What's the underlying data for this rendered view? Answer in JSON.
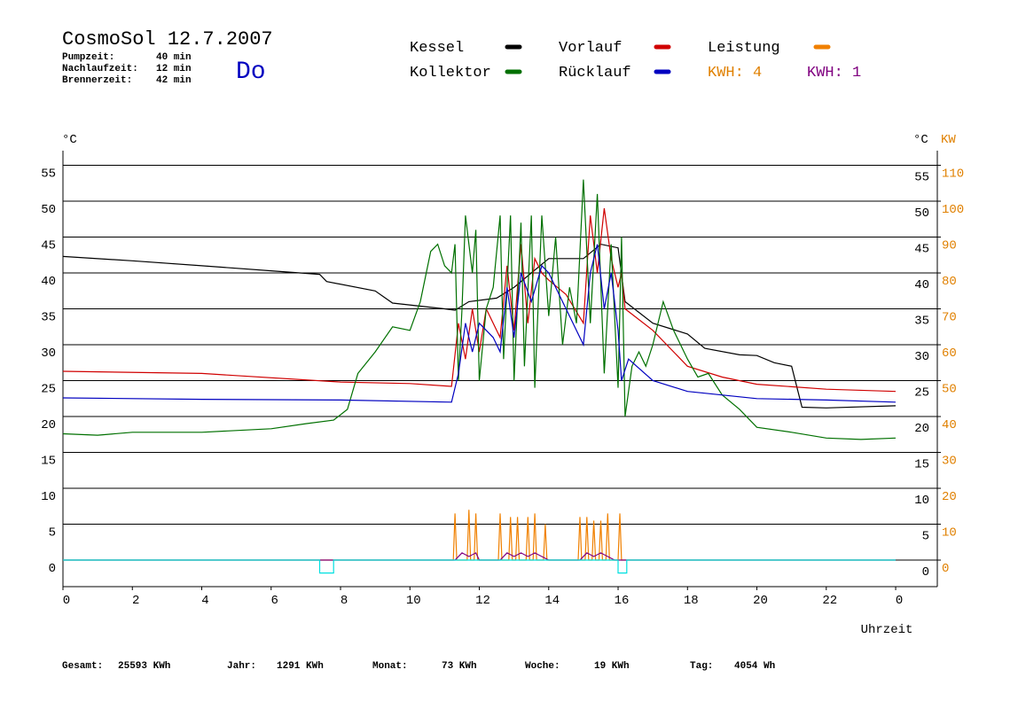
{
  "header": {
    "title": "CosmoSol 12.7.2007",
    "day": "Do",
    "info": [
      {
        "label": "Pumpzeit:",
        "value": "40 min"
      },
      {
        "label": "Nachlaufzeit:",
        "value": "12 min"
      },
      {
        "label": "Brennerzeit:",
        "value": "42 min"
      }
    ],
    "kwh": [
      {
        "text": "KWH: 4",
        "color": "#e08000"
      },
      {
        "text": "KWH: 1",
        "color": "#800080"
      }
    ]
  },
  "footer": [
    {
      "label": "Gesamt:",
      "value": "25593 KWh"
    },
    {
      "label": "Jahr:",
      "value": "1291 KWh"
    },
    {
      "label": "Monat:",
      "value": "73 KWh"
    },
    {
      "label": "Woche:",
      "value": "19 KWh"
    },
    {
      "label": "Tag:",
      "value": "4054 Wh"
    }
  ],
  "chart_data": {
    "type": "line",
    "ylabel": "°C",
    "y2label_left": "°C",
    "y2label": "KW",
    "xlabel": "Uhrzeit",
    "xlim": [
      0,
      25.2
    ],
    "xticks": [
      0,
      2,
      4,
      6,
      8,
      10,
      12,
      14,
      16,
      18,
      20,
      22,
      {
        "value": 24,
        "label": "0"
      }
    ],
    "ylim": [
      -3.7,
      57.04
    ],
    "yticks": [
      0,
      5,
      10,
      15,
      20,
      25,
      30,
      35,
      40,
      45,
      50,
      55
    ],
    "y2lim": [
      -7.4,
      114.08
    ],
    "y2ticks": [
      0,
      10,
      20,
      30,
      40,
      50,
      60,
      70,
      80,
      90,
      100,
      110
    ],
    "grid": true,
    "series": [
      {
        "name": "Kessel",
        "color": "#000000",
        "x": [
          0,
          2,
          4,
          6,
          7.4,
          7.6,
          9,
          9.5,
          11,
          11.3,
          11.7,
          12.5,
          13,
          13.5,
          14,
          15,
          15.5,
          16,
          16.2,
          17,
          18,
          18.5,
          19.5,
          20,
          20.5,
          21,
          21.3,
          22,
          24
        ],
        "values": [
          42.3,
          41.7,
          41.0,
          40.3,
          39.8,
          38.8,
          37.5,
          35.8,
          35.0,
          34.8,
          36.0,
          36.5,
          38,
          40,
          42,
          42,
          44,
          43.5,
          36,
          33,
          31.5,
          29.5,
          28.6,
          28.5,
          27.5,
          27,
          21.3,
          21.2,
          21.5
        ]
      },
      {
        "name": "Vorlauf",
        "color": "#d00000",
        "x": [
          0,
          4,
          8,
          10,
          11.2,
          11.4,
          11.6,
          11.8,
          12,
          12.2,
          12.6,
          12.8,
          13.0,
          13.2,
          13.4,
          13.6,
          13.8,
          14,
          14.5,
          15,
          15.2,
          15.4,
          15.6,
          15.8,
          16,
          16.1,
          16.2,
          17,
          18,
          19,
          20,
          22,
          24
        ],
        "values": [
          26.3,
          26.0,
          24.8,
          24.6,
          24.2,
          33,
          28,
          35,
          29,
          35,
          31,
          41,
          32,
          44,
          33,
          42,
          40,
          39,
          37,
          33,
          48,
          40,
          49,
          42,
          38,
          40,
          35,
          32,
          27,
          25.5,
          24.5,
          23.8,
          23.5
        ]
      },
      {
        "name": "Leistung",
        "color": "#f08000",
        "axis": "y2",
        "x": [
          0,
          11.25,
          11.3,
          11.35,
          11.65,
          11.7,
          11.75,
          11.85,
          11.9,
          11.95,
          12.55,
          12.6,
          12.65,
          12.85,
          12.9,
          12.95,
          13.05,
          13.1,
          13.15,
          13.35,
          13.4,
          13.45,
          13.55,
          13.6,
          13.65,
          13.85,
          13.9,
          13.95,
          14.85,
          14.9,
          14.95,
          15.05,
          15.1,
          15.15,
          15.25,
          15.3,
          15.35,
          15.45,
          15.5,
          15.55,
          15.65,
          15.7,
          15.75,
          16.0,
          16.05,
          16.1,
          24
        ],
        "values": [
          0,
          0,
          13,
          0,
          0,
          14,
          0,
          0,
          13,
          0,
          0,
          13,
          0,
          0,
          12,
          0,
          0,
          12,
          0,
          0,
          12,
          0,
          0,
          13,
          0,
          0,
          10,
          0,
          0,
          12,
          0,
          0,
          12,
          0,
          0,
          11,
          0,
          0,
          11,
          0,
          0,
          13,
          0,
          0,
          13,
          0,
          0
        ]
      },
      {
        "name": "Kollektor",
        "color": "#007000",
        "x": [
          0,
          1,
          2,
          4,
          6,
          7,
          7.8,
          8.2,
          8.5,
          9,
          9.5,
          10,
          10.3,
          10.6,
          10.8,
          11,
          11.2,
          11.3,
          11.4,
          11.5,
          11.6,
          11.8,
          11.9,
          12,
          12.2,
          12.4,
          12.6,
          12.7,
          12.9,
          13.0,
          13.2,
          13.3,
          13.5,
          13.6,
          13.8,
          14,
          14.2,
          14.4,
          14.6,
          14.8,
          15,
          15.2,
          15.4,
          15.6,
          15.8,
          16,
          16.1,
          16.2,
          16.4,
          16.6,
          16.8,
          17,
          17.3,
          17.6,
          18,
          18.3,
          18.6,
          19,
          19.5,
          20,
          21,
          22,
          23,
          24
        ],
        "values": [
          17.6,
          17.4,
          17.8,
          17.8,
          18.3,
          19,
          19.5,
          21,
          26,
          29,
          32.5,
          32,
          36,
          43,
          44,
          41,
          40,
          44,
          25,
          35,
          48,
          40,
          46,
          25,
          35,
          38,
          48,
          28,
          48,
          25,
          47,
          27,
          48,
          24,
          48,
          34,
          45,
          30,
          38,
          33,
          53,
          33,
          51,
          26,
          44,
          24,
          45,
          20,
          27,
          29,
          27,
          30,
          36,
          32,
          28,
          25.5,
          26,
          23,
          21,
          18.5,
          17.8,
          17,
          16.8,
          17.0
        ]
      },
      {
        "name": "Rücklauf",
        "color": "#0000c0",
        "x": [
          0,
          4,
          8,
          11.2,
          11.4,
          11.6,
          11.8,
          12,
          12.4,
          12.6,
          12.8,
          13.0,
          13.2,
          13.5,
          13.8,
          14,
          14.5,
          15,
          15.2,
          15.4,
          15.6,
          15.8,
          16,
          16.1,
          16.3,
          17,
          18,
          20,
          22,
          24
        ],
        "values": [
          22.6,
          22.4,
          22.3,
          22.0,
          26,
          33,
          29,
          33,
          31,
          29,
          38,
          31,
          40,
          36,
          41,
          40,
          35,
          30,
          40,
          44,
          35,
          40,
          32,
          25,
          28,
          25,
          23.5,
          22.5,
          22.3,
          22.0
        ]
      },
      {
        "color": "#800080",
        "axis": "y2",
        "x": [
          0,
          11.3,
          11.5,
          11.7,
          11.9,
          12.0,
          12.6,
          12.8,
          13.0,
          13.2,
          13.4,
          13.6,
          13.8,
          14.0,
          14.9,
          15.1,
          15.3,
          15.5,
          15.7,
          15.9,
          24
        ],
        "values": [
          0,
          0,
          2,
          1,
          2,
          0,
          0,
          2,
          1,
          2,
          1,
          2,
          1,
          0,
          0,
          2,
          1,
          2,
          1,
          0,
          0
        ]
      },
      {
        "color": "#00e0e0",
        "x": [
          0,
          7.4,
          7.4,
          7.8,
          7.8,
          16,
          16,
          16.25,
          16.25,
          24
        ],
        "values": [
          0,
          0,
          -1.8,
          -1.8,
          0,
          0,
          -1.8,
          -1.8,
          0,
          0
        ]
      }
    ]
  }
}
